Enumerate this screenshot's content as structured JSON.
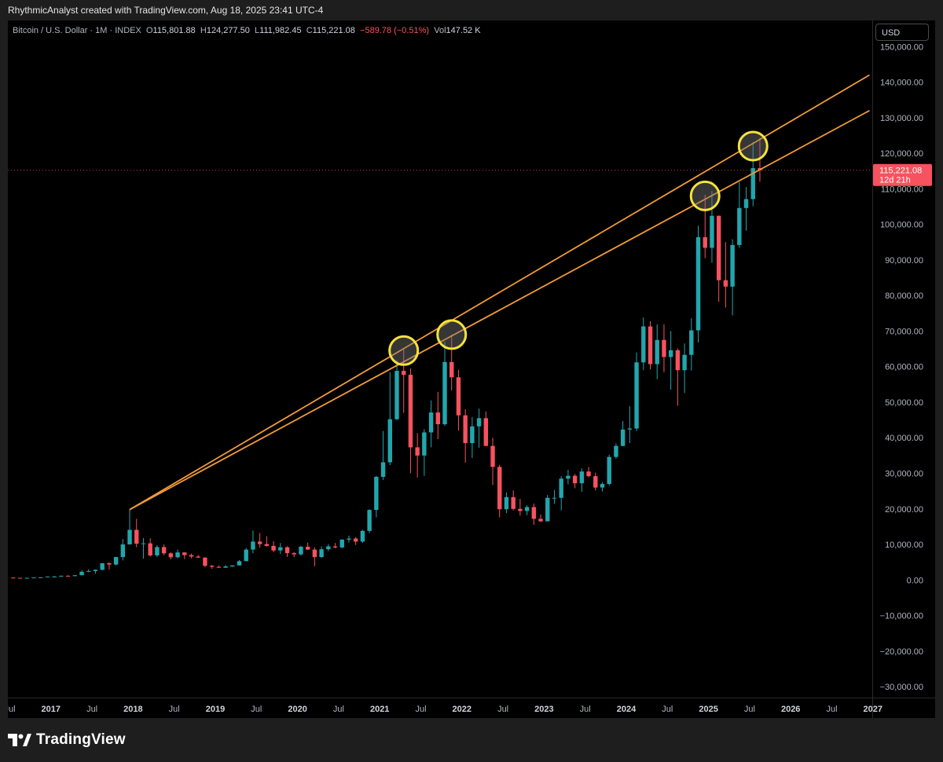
{
  "attribution": "RhythmicAnalyst created with TradingView.com, Aug 18, 2025 23:41 UTC-4",
  "legend": {
    "symbol": "Bitcoin / U.S. Dollar · 1M · INDEX",
    "o_label": "O",
    "o": "115,801.88",
    "h_label": "H",
    "h": "124,277.50",
    "l_label": "L",
    "l": "111,982.45",
    "c_label": "C",
    "c": "115,221.08",
    "change": "−589.78 (−0.51%)",
    "vol_label": "Vol",
    "vol": "147.52 K"
  },
  "currency_button": "USD",
  "price_badge": {
    "price": "115,221.08",
    "countdown": "12d 21h"
  },
  "brand": "TradingView",
  "colors": {
    "bull": "#22a6ad",
    "bear": "#f7525f",
    "trendline": "#f29b38",
    "highlight": "#f5e23a",
    "badge": "#f7525f"
  },
  "chart_data": {
    "type": "candlestick",
    "title": "Bitcoin / U.S. Dollar · 1M · INDEX",
    "y_ticks": [
      "150,000.00",
      "140,000.00",
      "130,000.00",
      "120,000.00",
      "110,000.00",
      "100,000.00",
      "90,000.00",
      "80,000.00",
      "70,000.00",
      "60,000.00",
      "50,000.00",
      "40,000.00",
      "30,000.00",
      "20,000.00",
      "10,000.00",
      "0.00",
      "−10,000.00",
      "−20,000.00",
      "−30,000.00"
    ],
    "x_ticks": [
      {
        "label": "Jul",
        "t": 2016.5
      },
      {
        "label": "2017",
        "t": 2017.0
      },
      {
        "label": "Jul",
        "t": 2017.5
      },
      {
        "label": "2018",
        "t": 2018.0
      },
      {
        "label": "Jul",
        "t": 2018.5
      },
      {
        "label": "2019",
        "t": 2019.0
      },
      {
        "label": "Jul",
        "t": 2019.5
      },
      {
        "label": "2020",
        "t": 2020.0
      },
      {
        "label": "Jul",
        "t": 2020.5
      },
      {
        "label": "2021",
        "t": 2021.0
      },
      {
        "label": "Jul",
        "t": 2021.5
      },
      {
        "label": "2022",
        "t": 2022.0
      },
      {
        "label": "Jul",
        "t": 2022.5
      },
      {
        "label": "2023",
        "t": 2023.0
      },
      {
        "label": "Jul",
        "t": 2023.5
      },
      {
        "label": "2024",
        "t": 2024.0
      },
      {
        "label": "Jul",
        "t": 2024.5
      },
      {
        "label": "2025",
        "t": 2025.0
      },
      {
        "label": "Jul",
        "t": 2025.5
      },
      {
        "label": "2026",
        "t": 2026.0
      },
      {
        "label": "Jul",
        "t": 2026.5
      },
      {
        "label": "2027",
        "t": 2027.0
      }
    ],
    "ylim": [
      -30000,
      152000
    ],
    "last_price": 115221.08,
    "candles": [
      {
        "t": "2016-07",
        "o": 670,
        "h": 700,
        "l": 480,
        "c": 620
      },
      {
        "t": "2016-08",
        "o": 620,
        "h": 620,
        "l": 470,
        "c": 575
      },
      {
        "t": "2016-09",
        "o": 575,
        "h": 630,
        "l": 560,
        "c": 610
      },
      {
        "t": "2016-10",
        "o": 610,
        "h": 720,
        "l": 600,
        "c": 700
      },
      {
        "t": "2016-11",
        "o": 700,
        "h": 760,
        "l": 680,
        "c": 740
      },
      {
        "t": "2016-12",
        "o": 740,
        "h": 980,
        "l": 730,
        "c": 960
      },
      {
        "t": "2017-01",
        "o": 960,
        "h": 1150,
        "l": 750,
        "c": 970
      },
      {
        "t": "2017-02",
        "o": 970,
        "h": 1200,
        "l": 930,
        "c": 1190
      },
      {
        "t": "2017-03",
        "o": 1190,
        "h": 1300,
        "l": 900,
        "c": 1080
      },
      {
        "t": "2017-04",
        "o": 1080,
        "h": 1360,
        "l": 1080,
        "c": 1350
      },
      {
        "t": "2017-05",
        "o": 1350,
        "h": 2800,
        "l": 1350,
        "c": 2300
      },
      {
        "t": "2017-06",
        "o": 2300,
        "h": 3000,
        "l": 2200,
        "c": 2500
      },
      {
        "t": "2017-07",
        "o": 2500,
        "h": 2950,
        "l": 1800,
        "c": 2870
      },
      {
        "t": "2017-08",
        "o": 2870,
        "h": 4800,
        "l": 2700,
        "c": 4700
      },
      {
        "t": "2017-09",
        "o": 4700,
        "h": 5000,
        "l": 2900,
        "c": 4350
      },
      {
        "t": "2017-10",
        "o": 4350,
        "h": 6500,
        "l": 4100,
        "c": 6450
      },
      {
        "t": "2017-11",
        "o": 6450,
        "h": 11500,
        "l": 5500,
        "c": 10000
      },
      {
        "t": "2017-12",
        "o": 10000,
        "h": 19800,
        "l": 10000,
        "c": 14100
      },
      {
        "t": "2018-01",
        "o": 14100,
        "h": 17200,
        "l": 9200,
        "c": 10200
      },
      {
        "t": "2018-02",
        "o": 10200,
        "h": 11800,
        "l": 6000,
        "c": 10300
      },
      {
        "t": "2018-03",
        "o": 10300,
        "h": 11700,
        "l": 6600,
        "c": 6900
      },
      {
        "t": "2018-04",
        "o": 6900,
        "h": 9800,
        "l": 6500,
        "c": 9250
      },
      {
        "t": "2018-05",
        "o": 9250,
        "h": 10000,
        "l": 7000,
        "c": 7500
      },
      {
        "t": "2018-06",
        "o": 7500,
        "h": 7800,
        "l": 5800,
        "c": 6400
      },
      {
        "t": "2018-07",
        "o": 6400,
        "h": 8500,
        "l": 6100,
        "c": 7750
      },
      {
        "t": "2018-08",
        "o": 7750,
        "h": 7800,
        "l": 5900,
        "c": 7000
      },
      {
        "t": "2018-09",
        "o": 7000,
        "h": 7400,
        "l": 6100,
        "c": 6600
      },
      {
        "t": "2018-10",
        "o": 6600,
        "h": 7000,
        "l": 6200,
        "c": 6300
      },
      {
        "t": "2018-11",
        "o": 6300,
        "h": 6400,
        "l": 3600,
        "c": 4000
      },
      {
        "t": "2018-12",
        "o": 4000,
        "h": 4200,
        "l": 3100,
        "c": 3700
      },
      {
        "t": "2019-01",
        "o": 3700,
        "h": 4100,
        "l": 3400,
        "c": 3450
      },
      {
        "t": "2019-02",
        "o": 3450,
        "h": 4200,
        "l": 3400,
        "c": 3800
      },
      {
        "t": "2019-03",
        "o": 3800,
        "h": 4100,
        "l": 3700,
        "c": 4100
      },
      {
        "t": "2019-04",
        "o": 4100,
        "h": 5600,
        "l": 4100,
        "c": 5300
      },
      {
        "t": "2019-05",
        "o": 5300,
        "h": 9000,
        "l": 5300,
        "c": 8550
      },
      {
        "t": "2019-06",
        "o": 8550,
        "h": 13900,
        "l": 7500,
        "c": 10800
      },
      {
        "t": "2019-07",
        "o": 10800,
        "h": 13200,
        "l": 9100,
        "c": 10100
      },
      {
        "t": "2019-08",
        "o": 10100,
        "h": 12300,
        "l": 9400,
        "c": 9600
      },
      {
        "t": "2019-09",
        "o": 9600,
        "h": 10900,
        "l": 7800,
        "c": 8300
      },
      {
        "t": "2019-10",
        "o": 8300,
        "h": 10400,
        "l": 7300,
        "c": 9200
      },
      {
        "t": "2019-11",
        "o": 9200,
        "h": 9500,
        "l": 6500,
        "c": 7550
      },
      {
        "t": "2019-12",
        "o": 7550,
        "h": 7800,
        "l": 6400,
        "c": 7200
      },
      {
        "t": "2020-01",
        "o": 7200,
        "h": 9600,
        "l": 6900,
        "c": 9350
      },
      {
        "t": "2020-02",
        "o": 9350,
        "h": 10500,
        "l": 8450,
        "c": 8550
      },
      {
        "t": "2020-03",
        "o": 8550,
        "h": 9200,
        "l": 3850,
        "c": 6450
      },
      {
        "t": "2020-04",
        "o": 6450,
        "h": 9450,
        "l": 6200,
        "c": 8650
      },
      {
        "t": "2020-05",
        "o": 8650,
        "h": 10100,
        "l": 8100,
        "c": 9450
      },
      {
        "t": "2020-06",
        "o": 9450,
        "h": 10400,
        "l": 8900,
        "c": 9150
      },
      {
        "t": "2020-07",
        "o": 9150,
        "h": 11450,
        "l": 8950,
        "c": 11350
      },
      {
        "t": "2020-08",
        "o": 11350,
        "h": 12500,
        "l": 10500,
        "c": 11650
      },
      {
        "t": "2020-09",
        "o": 11650,
        "h": 12100,
        "l": 9850,
        "c": 10800
      },
      {
        "t": "2020-10",
        "o": 10800,
        "h": 14100,
        "l": 10400,
        "c": 13800
      },
      {
        "t": "2020-11",
        "o": 13800,
        "h": 19900,
        "l": 13200,
        "c": 19700
      },
      {
        "t": "2020-12",
        "o": 19700,
        "h": 29300,
        "l": 17600,
        "c": 29000
      },
      {
        "t": "2021-01",
        "o": 29000,
        "h": 41900,
        "l": 28100,
        "c": 33100
      },
      {
        "t": "2021-02",
        "o": 33100,
        "h": 58400,
        "l": 32300,
        "c": 45200
      },
      {
        "t": "2021-03",
        "o": 45200,
        "h": 61800,
        "l": 45000,
        "c": 58800
      },
      {
        "t": "2021-04",
        "o": 58800,
        "h": 64800,
        "l": 47000,
        "c": 57700
      },
      {
        "t": "2021-05",
        "o": 57700,
        "h": 59500,
        "l": 30000,
        "c": 37300
      },
      {
        "t": "2021-06",
        "o": 37300,
        "h": 41300,
        "l": 28800,
        "c": 35000
      },
      {
        "t": "2021-07",
        "o": 35000,
        "h": 42400,
        "l": 29300,
        "c": 41500
      },
      {
        "t": "2021-08",
        "o": 41500,
        "h": 50500,
        "l": 37300,
        "c": 47100
      },
      {
        "t": "2021-09",
        "o": 47100,
        "h": 52900,
        "l": 39600,
        "c": 43800
      },
      {
        "t": "2021-10",
        "o": 43800,
        "h": 67000,
        "l": 43300,
        "c": 61300
      },
      {
        "t": "2021-11",
        "o": 61300,
        "h": 69000,
        "l": 53300,
        "c": 57000
      },
      {
        "t": "2021-12",
        "o": 57000,
        "h": 59100,
        "l": 42000,
        "c": 46300
      },
      {
        "t": "2022-01",
        "o": 46300,
        "h": 48000,
        "l": 33000,
        "c": 38500
      },
      {
        "t": "2022-02",
        "o": 38500,
        "h": 45800,
        "l": 34300,
        "c": 43200
      },
      {
        "t": "2022-03",
        "o": 43200,
        "h": 48200,
        "l": 37200,
        "c": 45500
      },
      {
        "t": "2022-04",
        "o": 45500,
        "h": 47400,
        "l": 37600,
        "c": 37700
      },
      {
        "t": "2022-05",
        "o": 37700,
        "h": 40000,
        "l": 26700,
        "c": 31800
      },
      {
        "t": "2022-06",
        "o": 31800,
        "h": 32400,
        "l": 17600,
        "c": 19900
      },
      {
        "t": "2022-07",
        "o": 19900,
        "h": 24600,
        "l": 18800,
        "c": 23300
      },
      {
        "t": "2022-08",
        "o": 23300,
        "h": 25200,
        "l": 19600,
        "c": 20000
      },
      {
        "t": "2022-09",
        "o": 20000,
        "h": 22800,
        "l": 18100,
        "c": 19400
      },
      {
        "t": "2022-10",
        "o": 19400,
        "h": 21000,
        "l": 18200,
        "c": 20500
      },
      {
        "t": "2022-11",
        "o": 20500,
        "h": 21500,
        "l": 15500,
        "c": 17200
      },
      {
        "t": "2022-12",
        "o": 17200,
        "h": 18400,
        "l": 16300,
        "c": 16500
      },
      {
        "t": "2023-01",
        "o": 16500,
        "h": 23900,
        "l": 16500,
        "c": 23100
      },
      {
        "t": "2023-02",
        "o": 23100,
        "h": 25300,
        "l": 21400,
        "c": 23100
      },
      {
        "t": "2023-03",
        "o": 23100,
        "h": 29200,
        "l": 19600,
        "c": 28500
      },
      {
        "t": "2023-04",
        "o": 28500,
        "h": 31000,
        "l": 26900,
        "c": 29300
      },
      {
        "t": "2023-05",
        "o": 29300,
        "h": 29800,
        "l": 25800,
        "c": 27200
      },
      {
        "t": "2023-06",
        "o": 27200,
        "h": 31400,
        "l": 24800,
        "c": 30500
      },
      {
        "t": "2023-07",
        "o": 30500,
        "h": 31800,
        "l": 28900,
        "c": 29200
      },
      {
        "t": "2023-08",
        "o": 29200,
        "h": 30200,
        "l": 25200,
        "c": 26000
      },
      {
        "t": "2023-09",
        "o": 26000,
        "h": 27500,
        "l": 24900,
        "c": 27000
      },
      {
        "t": "2023-10",
        "o": 27000,
        "h": 35200,
        "l": 26600,
        "c": 34600
      },
      {
        "t": "2023-11",
        "o": 34600,
        "h": 38400,
        "l": 34100,
        "c": 37700
      },
      {
        "t": "2023-12",
        "o": 37700,
        "h": 44700,
        "l": 37600,
        "c": 42300
      },
      {
        "t": "2024-01",
        "o": 42300,
        "h": 48900,
        "l": 38500,
        "c": 42600
      },
      {
        "t": "2024-02",
        "o": 42600,
        "h": 64000,
        "l": 41900,
        "c": 61200
      },
      {
        "t": "2024-03",
        "o": 61200,
        "h": 73800,
        "l": 59000,
        "c": 71300
      },
      {
        "t": "2024-04",
        "o": 71300,
        "h": 72800,
        "l": 59200,
        "c": 60700
      },
      {
        "t": "2024-05",
        "o": 60700,
        "h": 71900,
        "l": 56500,
        "c": 67500
      },
      {
        "t": "2024-06",
        "o": 67500,
        "h": 71900,
        "l": 58400,
        "c": 62700
      },
      {
        "t": "2024-07",
        "o": 62700,
        "h": 70000,
        "l": 53500,
        "c": 64600
      },
      {
        "t": "2024-08",
        "o": 64600,
        "h": 65100,
        "l": 49000,
        "c": 59000
      },
      {
        "t": "2024-09",
        "o": 59000,
        "h": 66500,
        "l": 52600,
        "c": 63300
      },
      {
        "t": "2024-10",
        "o": 63300,
        "h": 73600,
        "l": 58900,
        "c": 70200
      },
      {
        "t": "2024-11",
        "o": 70200,
        "h": 99600,
        "l": 66800,
        "c": 96400
      },
      {
        "t": "2024-12",
        "o": 96400,
        "h": 108300,
        "l": 90500,
        "c": 93400
      },
      {
        "t": "2025-01",
        "o": 93400,
        "h": 109400,
        "l": 89200,
        "c": 102400
      },
      {
        "t": "2025-02",
        "o": 102400,
        "h": 102500,
        "l": 78200,
        "c": 84300
      },
      {
        "t": "2025-03",
        "o": 84300,
        "h": 95000,
        "l": 76600,
        "c": 82500
      },
      {
        "t": "2025-04",
        "o": 82500,
        "h": 95800,
        "l": 74400,
        "c": 94200
      },
      {
        "t": "2025-05",
        "o": 94200,
        "h": 111900,
        "l": 93400,
        "c": 104600
      },
      {
        "t": "2025-06",
        "o": 104600,
        "h": 110500,
        "l": 98200,
        "c": 107100
      },
      {
        "t": "2025-07",
        "o": 107100,
        "h": 123200,
        "l": 105100,
        "c": 115800
      },
      {
        "t": "2025-08",
        "o": 115801.88,
        "h": 124277.5,
        "l": 111982.45,
        "c": 115221.08
      }
    ],
    "trendlines": [
      {
        "from": {
          "t": "2017-12",
          "price": 19800
        },
        "to": {
          "t": "2026-12",
          "price": 142000
        }
      },
      {
        "from": {
          "t": "2017-12",
          "price": 19800
        },
        "to": {
          "t": "2026-12",
          "price": 132000
        }
      }
    ],
    "highlights": [
      {
        "t": "2021-04",
        "price": 64500
      },
      {
        "t": "2021-11",
        "price": 69000
      },
      {
        "t": "2024-12",
        "price": 108000
      },
      {
        "t": "2025-07",
        "price": 122000
      }
    ]
  }
}
